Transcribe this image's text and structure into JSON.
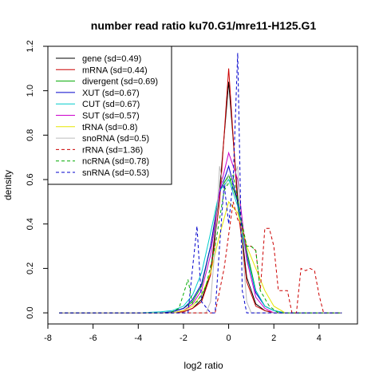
{
  "chart_data": {
    "type": "line",
    "title": "number read ratio ku70.G1/mre11-H125.G1",
    "xlabel": "log2 ratio",
    "ylabel": "density",
    "xlim": [
      -8,
      5.7
    ],
    "ylim": [
      -0.05,
      1.2
    ],
    "xticks": [
      -8,
      -6,
      -4,
      -2,
      0,
      2,
      4
    ],
    "xtick_labels": [
      "-8",
      "-6",
      "-4",
      "-2",
      "0",
      "2",
      "4"
    ],
    "yticks": [
      0.0,
      0.2,
      0.4,
      0.6,
      0.8,
      1.0,
      1.2
    ],
    "ytick_labels": [
      "0.0",
      "0.2",
      "0.4",
      "0.6",
      "0.8",
      "1.0",
      "1.2"
    ],
    "grid": false,
    "legend_position": "top-left",
    "series": [
      {
        "name": "gene (sd=0.49)",
        "color": "#000000",
        "dash": "solid",
        "x": [
          -7.5,
          -3.0,
          -2.5,
          -2.0,
          -1.6,
          -1.2,
          -0.8,
          -0.4,
          0.0,
          0.4,
          0.8,
          1.2,
          1.6,
          2.0,
          2.5,
          5.0
        ],
        "y": [
          0.0,
          0.0,
          0.0,
          0.005,
          0.02,
          0.06,
          0.18,
          0.55,
          1.04,
          0.52,
          0.16,
          0.04,
          0.01,
          0.0,
          0.0,
          0.0
        ]
      },
      {
        "name": "mRNA (sd=0.44)",
        "color": "#cc0000",
        "dash": "solid",
        "x": [
          -7.5,
          -3.0,
          -2.5,
          -2.0,
          -1.6,
          -1.2,
          -0.8,
          -0.4,
          0.0,
          0.4,
          0.8,
          1.2,
          1.6,
          2.0,
          2.5,
          5.0
        ],
        "y": [
          0.0,
          0.0,
          0.0,
          0.005,
          0.02,
          0.05,
          0.17,
          0.5,
          1.1,
          0.48,
          0.14,
          0.03,
          0.01,
          0.0,
          0.0,
          0.0
        ]
      },
      {
        "name": "divergent (sd=0.69)",
        "color": "#00aa00",
        "dash": "solid",
        "x": [
          -7.5,
          -3.0,
          -2.5,
          -2.0,
          -1.6,
          -1.2,
          -0.8,
          -0.4,
          0.0,
          0.4,
          0.8,
          1.2,
          1.6,
          2.0,
          2.5,
          5.0
        ],
        "y": [
          0.0,
          0.0,
          0.005,
          0.02,
          0.05,
          0.12,
          0.3,
          0.55,
          0.62,
          0.5,
          0.28,
          0.1,
          0.03,
          0.01,
          0.0,
          0.0
        ]
      },
      {
        "name": "XUT (sd=0.67)",
        "color": "#0000cc",
        "dash": "solid",
        "x": [
          -7.5,
          -3.0,
          -2.5,
          -2.0,
          -1.6,
          -1.2,
          -0.8,
          -0.4,
          0.0,
          0.4,
          0.8,
          1.2,
          1.6,
          2.0,
          2.5,
          5.0
        ],
        "y": [
          0.0,
          0.0,
          0.005,
          0.02,
          0.06,
          0.13,
          0.3,
          0.54,
          0.66,
          0.5,
          0.26,
          0.09,
          0.03,
          0.01,
          0.0,
          0.0
        ]
      },
      {
        "name": "CUT (sd=0.67)",
        "color": "#00cccc",
        "dash": "solid",
        "x": [
          -7.5,
          -4.0,
          -3.0,
          -2.5,
          -2.0,
          -1.6,
          -1.2,
          -0.8,
          -0.4,
          0.0,
          0.4,
          0.8,
          1.2,
          1.6,
          2.0,
          2.5,
          5.0
        ],
        "y": [
          0.0,
          0.0,
          0.005,
          0.01,
          0.03,
          0.08,
          0.18,
          0.36,
          0.55,
          0.6,
          0.48,
          0.25,
          0.1,
          0.03,
          0.01,
          0.0,
          0.0
        ]
      },
      {
        "name": "SUT (sd=0.57)",
        "color": "#cc00cc",
        "dash": "solid",
        "x": [
          -7.5,
          -3.0,
          -2.5,
          -2.0,
          -1.6,
          -1.2,
          -0.8,
          -0.4,
          0.0,
          0.4,
          0.8,
          1.2,
          1.6,
          2.0,
          2.5,
          5.0
        ],
        "y": [
          0.0,
          0.0,
          0.0,
          0.01,
          0.04,
          0.1,
          0.26,
          0.55,
          0.72,
          0.6,
          0.24,
          0.07,
          0.02,
          0.0,
          0.0,
          0.0
        ]
      },
      {
        "name": "tRNA (sd=0.8)",
        "color": "#e6e600",
        "dash": "solid",
        "x": [
          -7.5,
          -3.0,
          -2.5,
          -2.0,
          -1.6,
          -1.2,
          -0.8,
          -0.4,
          0.0,
          0.4,
          0.8,
          1.2,
          1.6,
          2.0,
          2.5,
          5.0
        ],
        "y": [
          0.0,
          0.0,
          0.0,
          0.01,
          0.03,
          0.08,
          0.18,
          0.35,
          0.5,
          0.45,
          0.3,
          0.2,
          0.1,
          0.03,
          0.0,
          0.0
        ]
      },
      {
        "name": "snoRNA (sd=0.5)",
        "color": "#bbbbbb",
        "dash": "solid",
        "x": [
          -7.5,
          -1.0,
          -0.8,
          -0.6,
          -0.4,
          -0.2,
          0.0,
          0.2,
          0.4,
          0.6,
          0.8,
          1.0,
          5.0
        ],
        "y": [
          0.0,
          0.0,
          0.05,
          0.3,
          0.66,
          0.55,
          0.62,
          0.6,
          0.66,
          0.3,
          0.05,
          0.0,
          0.0
        ]
      },
      {
        "name": "rRNA (sd=1.36)",
        "color": "#cc0000",
        "dash": "dashed",
        "x": [
          -7.5,
          -0.6,
          -0.2,
          0.2,
          0.4,
          0.6,
          0.8,
          1.0,
          1.2,
          1.4,
          1.6,
          1.8,
          2.0,
          2.2,
          2.4,
          2.6,
          2.8,
          3.0,
          3.2,
          3.4,
          3.6,
          3.8,
          4.0,
          4.2,
          5.0
        ],
        "y": [
          0.0,
          0.0,
          0.2,
          0.5,
          0.42,
          0.38,
          0.3,
          0.3,
          0.28,
          0.1,
          0.38,
          0.38,
          0.3,
          0.1,
          0.1,
          0.1,
          0.0,
          0.0,
          0.2,
          0.19,
          0.2,
          0.19,
          0.08,
          0.0,
          0.0
        ]
      },
      {
        "name": "ncRNA (sd=0.78)",
        "color": "#00aa00",
        "dash": "dashed",
        "x": [
          -7.5,
          -3.0,
          -2.6,
          -2.2,
          -1.8,
          -1.6,
          -1.4,
          -1.0,
          -0.6,
          -0.2,
          0.2,
          0.6,
          0.8,
          1.0,
          1.2,
          1.4,
          1.8,
          2.2,
          5.0
        ],
        "y": [
          0.0,
          0.0,
          0.0,
          0.02,
          0.15,
          0.04,
          0.05,
          0.12,
          0.3,
          0.55,
          0.62,
          0.4,
          0.3,
          0.3,
          0.28,
          0.1,
          0.03,
          0.0,
          0.0
        ]
      },
      {
        "name": "snRNA (sd=0.53)",
        "color": "#0000cc",
        "dash": "dashed",
        "x": [
          -7.5,
          -1.8,
          -1.6,
          -1.4,
          -1.2,
          -0.8,
          -0.6,
          -0.4,
          -0.2,
          0.0,
          0.2,
          0.4,
          0.6,
          0.8,
          1.2,
          5.0
        ],
        "y": [
          0.0,
          0.0,
          0.2,
          0.39,
          0.05,
          0.0,
          0.0,
          0.3,
          0.58,
          0.4,
          0.6,
          1.17,
          0.1,
          0.0,
          0.0,
          0.0
        ]
      }
    ]
  }
}
